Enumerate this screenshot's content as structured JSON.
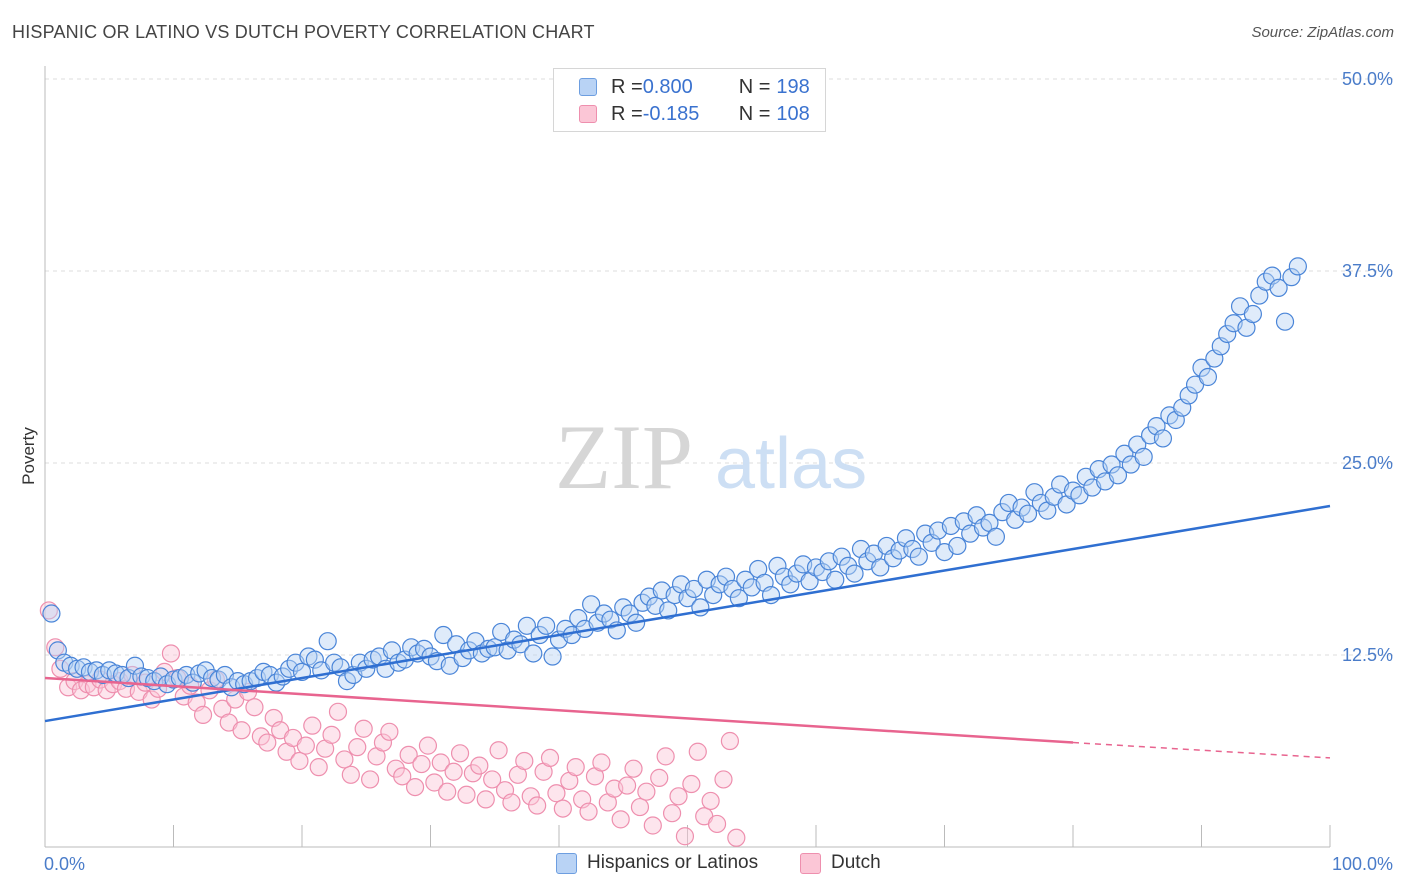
{
  "title": "HISPANIC OR LATINO VS DUTCH POVERTY CORRELATION CHART",
  "source": "Source: ZipAtlas.com",
  "watermark": {
    "zip": "ZIP",
    "atlas": "atlas"
  },
  "legend": {
    "rows": [
      {
        "r_label": "R = ",
        "r_value": "0.800",
        "n_label": "N = ",
        "n_value": "198"
      },
      {
        "r_label": "R = ",
        "r_value": "-0.185",
        "n_label": "N = ",
        "n_value": "108"
      }
    ]
  },
  "bottom_legend": [
    "Hispanics or Latinos",
    "Dutch"
  ],
  "colors": {
    "blue": "#4a85d8",
    "blue_fill": "#b9d3f5",
    "pink": "#ee8fae",
    "pink_fill": "#fbc6d6",
    "blue_line": "#2f6fd1",
    "pink_line": "#e8648f",
    "tick_text": "#4a7cc9"
  },
  "chart_data": {
    "type": "scatter",
    "title": "HISPANIC OR LATINO VS DUTCH POVERTY CORRELATION CHART",
    "xlabel": "",
    "ylabel": "Poverty",
    "xlim": [
      0,
      100
    ],
    "ylim": [
      0,
      50
    ],
    "x_tick_labels": [
      "0.0%",
      "100.0%"
    ],
    "y_ticks": [
      12.5,
      25.0,
      37.5,
      50.0
    ],
    "y_tick_labels": [
      "12.5%",
      "25.0%",
      "37.5%",
      "50.0%"
    ],
    "grid": true,
    "legend_position": "top-center",
    "series": [
      {
        "name": "Hispanics or Latinos",
        "r": 0.8,
        "n": 198,
        "trend": {
          "x": [
            0,
            100
          ],
          "y": [
            8.2,
            22.2
          ]
        },
        "points": [
          [
            0.5,
            15.2
          ],
          [
            1,
            12.8
          ],
          [
            1.5,
            12
          ],
          [
            2,
            11.8
          ],
          [
            2.5,
            11.6
          ],
          [
            3,
            11.7
          ],
          [
            3.5,
            11.4
          ],
          [
            4,
            11.5
          ],
          [
            4.5,
            11.2
          ],
          [
            5,
            11.5
          ],
          [
            5.5,
            11.3
          ],
          [
            6,
            11.2
          ],
          [
            6.5,
            11
          ],
          [
            7,
            11.8
          ],
          [
            7.5,
            11.1
          ],
          [
            8,
            11
          ],
          [
            8.5,
            10.8
          ],
          [
            9,
            11.1
          ],
          [
            9.5,
            10.6
          ],
          [
            10,
            10.9
          ],
          [
            10.5,
            11
          ],
          [
            11,
            11.2
          ],
          [
            11.5,
            10.7
          ],
          [
            12,
            11.3
          ],
          [
            12.5,
            11.5
          ],
          [
            13,
            11
          ],
          [
            13.5,
            10.9
          ],
          [
            14,
            11.2
          ],
          [
            14.5,
            10.4
          ],
          [
            15,
            10.8
          ],
          [
            15.5,
            10.6
          ],
          [
            16,
            10.8
          ],
          [
            16.5,
            11
          ],
          [
            17,
            11.4
          ],
          [
            17.5,
            11.2
          ],
          [
            18,
            10.7
          ],
          [
            18.5,
            11.1
          ],
          [
            19,
            11.6
          ],
          [
            19.5,
            12
          ],
          [
            20,
            11.4
          ],
          [
            20.5,
            12.4
          ],
          [
            21,
            12.2
          ],
          [
            21.5,
            11.5
          ],
          [
            22,
            13.4
          ],
          [
            22.5,
            12
          ],
          [
            23,
            11.7
          ],
          [
            23.5,
            10.8
          ],
          [
            24,
            11.2
          ],
          [
            24.5,
            12
          ],
          [
            25,
            11.6
          ],
          [
            25.5,
            12.2
          ],
          [
            26,
            12.4
          ],
          [
            26.5,
            11.6
          ],
          [
            27,
            12.8
          ],
          [
            27.5,
            12
          ],
          [
            28,
            12.2
          ],
          [
            28.5,
            13
          ],
          [
            29,
            12.6
          ],
          [
            29.5,
            12.9
          ],
          [
            30,
            12.4
          ],
          [
            30.5,
            12.1
          ],
          [
            31,
            13.8
          ],
          [
            31.5,
            11.8
          ],
          [
            32,
            13.2
          ],
          [
            32.5,
            12.3
          ],
          [
            33,
            12.8
          ],
          [
            33.5,
            13.4
          ],
          [
            34,
            12.6
          ],
          [
            34.5,
            12.9
          ],
          [
            35,
            13
          ],
          [
            35.5,
            14
          ],
          [
            36,
            12.8
          ],
          [
            36.5,
            13.5
          ],
          [
            37,
            13.2
          ],
          [
            37.5,
            14.4
          ],
          [
            38,
            12.6
          ],
          [
            38.5,
            13.8
          ],
          [
            39,
            14.4
          ],
          [
            39.5,
            12.4
          ],
          [
            40,
            13.5
          ],
          [
            40.5,
            14.2
          ],
          [
            41,
            13.8
          ],
          [
            41.5,
            14.9
          ],
          [
            42,
            14.2
          ],
          [
            42.5,
            15.8
          ],
          [
            43,
            14.6
          ],
          [
            43.5,
            15.2
          ],
          [
            44,
            14.8
          ],
          [
            44.5,
            14.1
          ],
          [
            45,
            15.6
          ],
          [
            45.5,
            15.2
          ],
          [
            46,
            14.6
          ],
          [
            46.5,
            15.9
          ],
          [
            47,
            16.3
          ],
          [
            47.5,
            15.7
          ],
          [
            48,
            16.7
          ],
          [
            48.5,
            15.4
          ],
          [
            49,
            16.4
          ],
          [
            49.5,
            17.1
          ],
          [
            50,
            16.2
          ],
          [
            50.5,
            16.8
          ],
          [
            51,
            15.6
          ],
          [
            51.5,
            17.4
          ],
          [
            52,
            16.4
          ],
          [
            52.5,
            17.1
          ],
          [
            53,
            17.6
          ],
          [
            53.5,
            16.8
          ],
          [
            54,
            16.2
          ],
          [
            54.5,
            17.4
          ],
          [
            55,
            16.9
          ],
          [
            55.5,
            18.1
          ],
          [
            56,
            17.2
          ],
          [
            56.5,
            16.4
          ],
          [
            57,
            18.3
          ],
          [
            57.5,
            17.6
          ],
          [
            58,
            17.1
          ],
          [
            58.5,
            17.8
          ],
          [
            59,
            18.4
          ],
          [
            59.5,
            17.3
          ],
          [
            60,
            18.2
          ],
          [
            60.5,
            17.9
          ],
          [
            61,
            18.6
          ],
          [
            61.5,
            17.4
          ],
          [
            62,
            18.9
          ],
          [
            62.5,
            18.3
          ],
          [
            63,
            17.8
          ],
          [
            63.5,
            19.4
          ],
          [
            64,
            18.6
          ],
          [
            64.5,
            19.1
          ],
          [
            65,
            18.2
          ],
          [
            65.5,
            19.6
          ],
          [
            66,
            18.8
          ],
          [
            66.5,
            19.3
          ],
          [
            67,
            20.1
          ],
          [
            67.5,
            19.4
          ],
          [
            68,
            18.9
          ],
          [
            68.5,
            20.4
          ],
          [
            69,
            19.8
          ],
          [
            69.5,
            20.6
          ],
          [
            70,
            19.2
          ],
          [
            70.5,
            20.9
          ],
          [
            71,
            19.6
          ],
          [
            71.5,
            21.2
          ],
          [
            72,
            20.4
          ],
          [
            72.5,
            21.6
          ],
          [
            73,
            20.8
          ],
          [
            73.5,
            21.1
          ],
          [
            74,
            20.2
          ],
          [
            74.5,
            21.8
          ],
          [
            75,
            22.4
          ],
          [
            75.5,
            21.3
          ],
          [
            76,
            22.1
          ],
          [
            76.5,
            21.7
          ],
          [
            77,
            23.1
          ],
          [
            77.5,
            22.4
          ],
          [
            78,
            21.9
          ],
          [
            78.5,
            22.8
          ],
          [
            79,
            23.6
          ],
          [
            79.5,
            22.3
          ],
          [
            80,
            23.2
          ],
          [
            80.5,
            22.9
          ],
          [
            81,
            24.1
          ],
          [
            81.5,
            23.4
          ],
          [
            82,
            24.6
          ],
          [
            82.5,
            23.8
          ],
          [
            83,
            24.9
          ],
          [
            83.5,
            24.2
          ],
          [
            84,
            25.6
          ],
          [
            84.5,
            24.9
          ],
          [
            85,
            26.2
          ],
          [
            85.5,
            25.4
          ],
          [
            86,
            26.8
          ],
          [
            86.5,
            27.4
          ],
          [
            87,
            26.6
          ],
          [
            87.5,
            28.1
          ],
          [
            88,
            27.8
          ],
          [
            88.5,
            28.6
          ],
          [
            89,
            29.4
          ],
          [
            89.5,
            30.1
          ],
          [
            90,
            31.2
          ],
          [
            90.5,
            30.6
          ],
          [
            91,
            31.8
          ],
          [
            91.5,
            32.6
          ],
          [
            92,
            33.4
          ],
          [
            92.5,
            34.1
          ],
          [
            93,
            35.2
          ],
          [
            93.5,
            33.8
          ],
          [
            94,
            34.7
          ],
          [
            94.5,
            35.9
          ],
          [
            95,
            36.8
          ],
          [
            95.5,
            37.2
          ],
          [
            96,
            36.4
          ],
          [
            96.5,
            34.2
          ],
          [
            97,
            37.1
          ],
          [
            97.5,
            37.8
          ]
        ]
      },
      {
        "name": "Dutch",
        "r": -0.185,
        "n": 108,
        "trend": {
          "x": [
            0,
            80,
            100
          ],
          "y": [
            11.0,
            6.8,
            5.8
          ]
        },
        "points": [
          [
            0.3,
            15.4
          ],
          [
            0.8,
            13
          ],
          [
            1.2,
            11.6
          ],
          [
            1.8,
            10.4
          ],
          [
            2.3,
            10.8
          ],
          [
            2.8,
            10.2
          ],
          [
            3.3,
            10.6
          ],
          [
            3.8,
            10.4
          ],
          [
            4.3,
            10.9
          ],
          [
            4.8,
            10.2
          ],
          [
            5.3,
            10.6
          ],
          [
            5.8,
            10.8
          ],
          [
            6.3,
            10.3
          ],
          [
            6.8,
            11.2
          ],
          [
            7.3,
            10.1
          ],
          [
            7.8,
            10.7
          ],
          [
            8.3,
            9.6
          ],
          [
            8.8,
            10.3
          ],
          [
            9.3,
            11.4
          ],
          [
            9.8,
            12.6
          ],
          [
            10.3,
            11
          ],
          [
            10.8,
            9.8
          ],
          [
            11.3,
            10.5
          ],
          [
            11.8,
            9.4
          ],
          [
            12.3,
            8.6
          ],
          [
            12.8,
            10.2
          ],
          [
            13.3,
            10.9
          ],
          [
            13.8,
            9
          ],
          [
            14.3,
            8.1
          ],
          [
            14.8,
            9.6
          ],
          [
            15.3,
            7.6
          ],
          [
            15.8,
            10.1
          ],
          [
            16.3,
            9.1
          ],
          [
            16.8,
            7.2
          ],
          [
            17.3,
            6.8
          ],
          [
            17.8,
            8.4
          ],
          [
            18.3,
            7.6
          ],
          [
            18.8,
            6.2
          ],
          [
            19.3,
            7.1
          ],
          [
            19.8,
            5.6
          ],
          [
            20.3,
            6.6
          ],
          [
            20.8,
            7.9
          ],
          [
            21.3,
            5.2
          ],
          [
            21.8,
            6.4
          ],
          [
            22.3,
            7.3
          ],
          [
            22.8,
            8.8
          ],
          [
            23.3,
            5.7
          ],
          [
            23.8,
            4.7
          ],
          [
            24.3,
            6.5
          ],
          [
            24.8,
            7.7
          ],
          [
            25.3,
            4.4
          ],
          [
            25.8,
            5.9
          ],
          [
            26.3,
            6.8
          ],
          [
            26.8,
            7.5
          ],
          [
            27.3,
            5.1
          ],
          [
            27.8,
            4.6
          ],
          [
            28.3,
            6
          ],
          [
            28.8,
            3.9
          ],
          [
            29.3,
            5.4
          ],
          [
            29.8,
            6.6
          ],
          [
            30.3,
            4.2
          ],
          [
            30.8,
            5.5
          ],
          [
            31.3,
            3.6
          ],
          [
            31.8,
            4.9
          ],
          [
            32.3,
            6.1
          ],
          [
            32.8,
            3.4
          ],
          [
            33.3,
            4.8
          ],
          [
            33.8,
            5.3
          ],
          [
            34.3,
            3.1
          ],
          [
            34.8,
            4.4
          ],
          [
            35.3,
            6.3
          ],
          [
            35.8,
            3.7
          ],
          [
            36.3,
            2.9
          ],
          [
            36.8,
            4.7
          ],
          [
            37.3,
            5.6
          ],
          [
            37.8,
            3.3
          ],
          [
            38.3,
            2.7
          ],
          [
            38.8,
            4.9
          ],
          [
            39.3,
            5.8
          ],
          [
            39.8,
            3.5
          ],
          [
            40.3,
            2.5
          ],
          [
            40.8,
            4.3
          ],
          [
            41.3,
            5.2
          ],
          [
            41.8,
            3.1
          ],
          [
            42.3,
            2.3
          ],
          [
            42.8,
            4.6
          ],
          [
            43.3,
            5.5
          ],
          [
            43.8,
            2.9
          ],
          [
            44.3,
            3.8
          ],
          [
            44.8,
            1.8
          ],
          [
            45.3,
            4
          ],
          [
            45.8,
            5.1
          ],
          [
            46.3,
            2.6
          ],
          [
            46.8,
            3.6
          ],
          [
            47.3,
            1.4
          ],
          [
            47.8,
            4.5
          ],
          [
            48.3,
            5.9
          ],
          [
            48.8,
            2.2
          ],
          [
            49.3,
            3.3
          ],
          [
            49.8,
            0.7
          ],
          [
            50.3,
            4.1
          ],
          [
            50.8,
            6.2
          ],
          [
            51.3,
            2
          ],
          [
            51.8,
            3
          ],
          [
            52.3,
            1.5
          ],
          [
            52.8,
            4.4
          ],
          [
            53.3,
            6.9
          ],
          [
            53.8,
            0.6
          ]
        ]
      }
    ]
  }
}
